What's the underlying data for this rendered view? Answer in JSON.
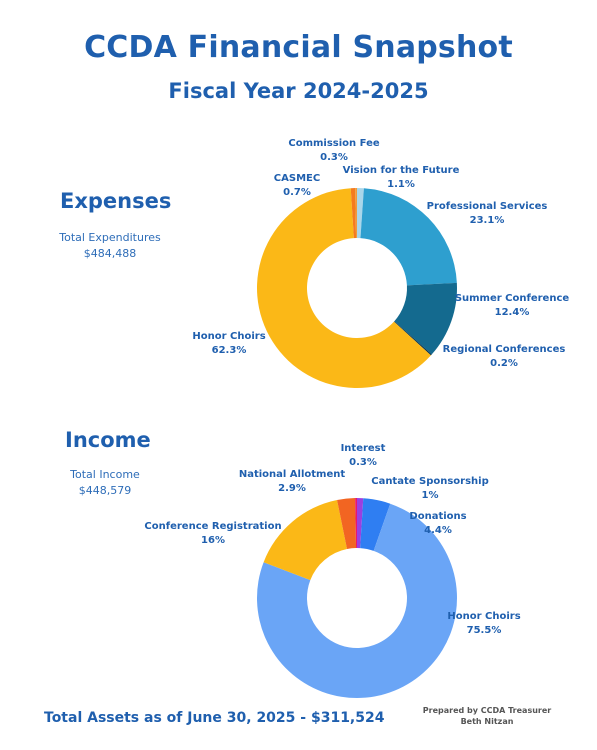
{
  "header": {
    "title": "CCDA Financial Snapshot",
    "subtitle": "Fiscal Year 2024-2025"
  },
  "expenses": {
    "heading": "Expenses",
    "total_label": "Total Expenditures",
    "total_value": "$484,488"
  },
  "income": {
    "heading": "Income",
    "total_label": "Total Income",
    "total_value": "$448,579"
  },
  "chart_data": [
    {
      "type": "pie",
      "variant": "donut",
      "slices": [
        {
          "label": "Vision for the Future",
          "value": 1.1,
          "display": "1.1%",
          "color": "#a9d6ea"
        },
        {
          "label": "Professional Services",
          "value": 23.1,
          "display": "23.1%",
          "color": "#2e9fcf"
        },
        {
          "label": "Summer Conference",
          "value": 12.4,
          "display": "12.4%",
          "color": "#146a8f"
        },
        {
          "label": "Regional Conferences",
          "value": 0.2,
          "display": "0.2%",
          "color": "#0a3550"
        },
        {
          "label": "Honor Choirs",
          "value": 62.3,
          "display": "62.3%",
          "color": "#fbb817"
        },
        {
          "label": "CASMEC",
          "value": 0.7,
          "display": "0.7%",
          "color": "#f47b20"
        },
        {
          "label": "Commission Fee",
          "value": 0.3,
          "display": "0.3%",
          "color": "#f09a3a"
        }
      ]
    },
    {
      "type": "pie",
      "variant": "donut",
      "slices": [
        {
          "label": "Cantate Sponsorship",
          "value": 1.0,
          "display": "1%",
          "color": "#9b3fe0"
        },
        {
          "label": "Donations",
          "value": 4.4,
          "display": "4.4%",
          "color": "#2f7ef2"
        },
        {
          "label": "Honor Choirs",
          "value": 75.5,
          "display": "75.5%",
          "color": "#6aa5f6"
        },
        {
          "label": "Conference Registration",
          "value": 16,
          "display": "16%",
          "color": "#fbb817"
        },
        {
          "label": "National Allotment",
          "value": 2.9,
          "display": "2.9%",
          "color": "#f26522"
        },
        {
          "label": "Interest",
          "value": 0.3,
          "display": "0.3%",
          "color": "#e8196b"
        }
      ]
    }
  ],
  "footer": {
    "total_assets": "Total Assets as of June 30, 2025 - $311,524",
    "prepared_by": "Prepared by CCDA Treasurer",
    "prepared_name": "Beth Nitzan"
  },
  "colors": {
    "heading_blue": "#1f5fae"
  }
}
